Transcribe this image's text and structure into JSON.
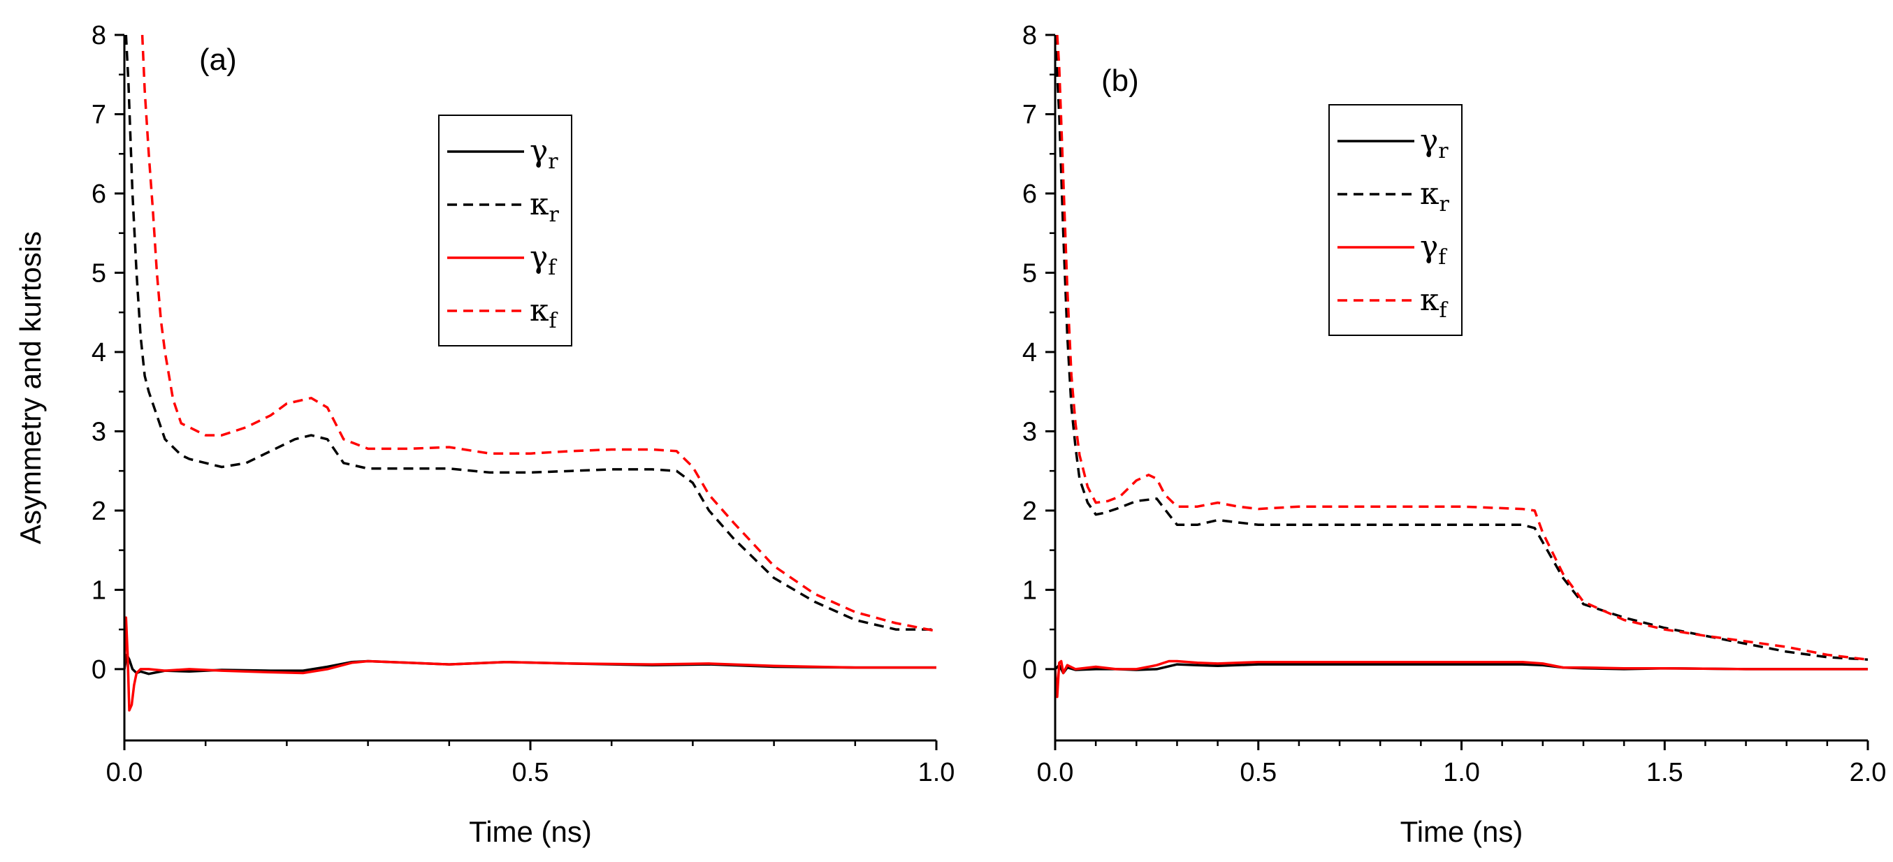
{
  "chart_data": [
    {
      "type": "line",
      "panel_label": "(a)",
      "xlabel": "Time (ns)",
      "ylabel": "Asymmetry and kurtosis",
      "xlim": [
        0,
        1.0
      ],
      "ylim": [
        -0.9,
        8
      ],
      "xticks": [
        0.0,
        0.5,
        1.0
      ],
      "xtick_labels": [
        "0.0",
        "0.5",
        "1.0"
      ],
      "yticks": [
        0,
        1,
        2,
        3,
        4,
        5,
        6,
        7,
        8
      ],
      "ytick_labels": [
        "0",
        "1",
        "2",
        "3",
        "4",
        "5",
        "6",
        "7",
        "8"
      ],
      "legend_position": "top-center",
      "series": [
        {
          "name": "γ",
          "sub": "r",
          "color": "#000000",
          "style": "solid",
          "x": [
            0.0,
            0.003,
            0.006,
            0.01,
            0.015,
            0.02,
            0.03,
            0.05,
            0.08,
            0.12,
            0.18,
            0.22,
            0.25,
            0.28,
            0.3,
            0.35,
            0.4,
            0.47,
            0.55,
            0.65,
            0.72,
            0.8,
            0.9,
            1.0
          ],
          "y": [
            0.0,
            0.18,
            0.12,
            0.0,
            -0.05,
            -0.03,
            -0.06,
            -0.02,
            -0.03,
            -0.01,
            -0.02,
            -0.02,
            0.03,
            0.09,
            0.1,
            0.08,
            0.06,
            0.09,
            0.07,
            0.05,
            0.06,
            0.03,
            0.02,
            0.02
          ]
        },
        {
          "name": "κ",
          "sub": "r",
          "color": "#000000",
          "style": "dashed",
          "x": [
            0.002,
            0.005,
            0.01,
            0.015,
            0.02,
            0.025,
            0.03,
            0.04,
            0.05,
            0.06,
            0.07,
            0.08,
            0.1,
            0.12,
            0.15,
            0.18,
            0.21,
            0.23,
            0.25,
            0.27,
            0.3,
            0.35,
            0.4,
            0.45,
            0.5,
            0.55,
            0.6,
            0.65,
            0.68,
            0.7,
            0.72,
            0.75,
            0.8,
            0.85,
            0.9,
            0.95,
            1.0
          ],
          "y": [
            8.0,
            7.4,
            6.0,
            5.0,
            4.2,
            3.7,
            3.5,
            3.2,
            2.9,
            2.8,
            2.7,
            2.65,
            2.6,
            2.55,
            2.6,
            2.75,
            2.9,
            2.95,
            2.9,
            2.6,
            2.53,
            2.53,
            2.53,
            2.48,
            2.48,
            2.5,
            2.52,
            2.52,
            2.5,
            2.35,
            2.0,
            1.65,
            1.15,
            0.85,
            0.62,
            0.5,
            0.5
          ]
        },
        {
          "name": "γ",
          "sub": "f",
          "color": "#ff0000",
          "style": "solid",
          "x": [
            0.0,
            0.002,
            0.004,
            0.006,
            0.009,
            0.012,
            0.015,
            0.02,
            0.03,
            0.05,
            0.08,
            0.12,
            0.18,
            0.22,
            0.25,
            0.28,
            0.3,
            0.35,
            0.4,
            0.47,
            0.55,
            0.65,
            0.72,
            0.8,
            0.9,
            1.0
          ],
          "y": [
            0.0,
            0.65,
            0.2,
            -0.52,
            -0.45,
            -0.2,
            -0.05,
            0.0,
            0.0,
            -0.02,
            0.0,
            -0.02,
            -0.04,
            -0.05,
            0.0,
            0.08,
            0.1,
            0.08,
            0.06,
            0.09,
            0.07,
            0.06,
            0.07,
            0.04,
            0.02,
            0.02
          ]
        },
        {
          "name": "κ",
          "sub": "f",
          "color": "#ff0000",
          "style": "dashed",
          "x": [
            0.022,
            0.025,
            0.03,
            0.035,
            0.04,
            0.045,
            0.05,
            0.06,
            0.07,
            0.08,
            0.1,
            0.12,
            0.15,
            0.18,
            0.2,
            0.23,
            0.25,
            0.27,
            0.3,
            0.35,
            0.4,
            0.45,
            0.5,
            0.55,
            0.6,
            0.65,
            0.68,
            0.7,
            0.72,
            0.75,
            0.8,
            0.85,
            0.9,
            0.95,
            1.0
          ],
          "y": [
            8.0,
            7.3,
            6.5,
            5.8,
            5.0,
            4.4,
            4.0,
            3.4,
            3.1,
            3.05,
            2.95,
            2.95,
            3.05,
            3.2,
            3.35,
            3.42,
            3.3,
            2.9,
            2.78,
            2.78,
            2.8,
            2.72,
            2.72,
            2.75,
            2.77,
            2.77,
            2.75,
            2.55,
            2.2,
            1.85,
            1.3,
            0.95,
            0.72,
            0.58,
            0.48
          ]
        }
      ]
    },
    {
      "type": "line",
      "panel_label": "(b)",
      "xlabel": "Time (ns)",
      "ylabel": "",
      "xlim": [
        0,
        2.0
      ],
      "ylim": [
        -0.9,
        8
      ],
      "xticks": [
        0.0,
        0.5,
        1.0,
        1.5,
        2.0
      ],
      "xtick_labels": [
        "0.0",
        "0.5",
        "1.0",
        "1.5",
        "2.0"
      ],
      "yticks": [
        0,
        1,
        2,
        3,
        4,
        5,
        6,
        7,
        8
      ],
      "ytick_labels": [
        "0",
        "1",
        "2",
        "3",
        "4",
        "5",
        "6",
        "7",
        "8"
      ],
      "legend_position": "top-center",
      "series": [
        {
          "name": "γ",
          "sub": "r",
          "color": "#000000",
          "style": "solid",
          "x": [
            0.0,
            0.01,
            0.02,
            0.03,
            0.05,
            0.1,
            0.15,
            0.2,
            0.25,
            0.3,
            0.35,
            0.4,
            0.5,
            0.7,
            1.0,
            1.15,
            1.2,
            1.25,
            1.3,
            1.4,
            1.5,
            1.7,
            2.0
          ],
          "y": [
            0.0,
            0.05,
            -0.05,
            0.02,
            -0.01,
            0.0,
            0.0,
            -0.01,
            0.0,
            0.06,
            0.05,
            0.04,
            0.06,
            0.06,
            0.06,
            0.06,
            0.05,
            0.02,
            0.01,
            0.0,
            0.01,
            0.0,
            0.0
          ]
        },
        {
          "name": "κ",
          "sub": "r",
          "color": "#000000",
          "style": "dashed",
          "x": [
            0.0,
            0.01,
            0.02,
            0.03,
            0.04,
            0.05,
            0.06,
            0.08,
            0.1,
            0.12,
            0.15,
            0.2,
            0.25,
            0.28,
            0.3,
            0.35,
            0.4,
            0.45,
            0.5,
            0.6,
            0.8,
            1.0,
            1.15,
            1.18,
            1.2,
            1.25,
            1.3,
            1.4,
            1.5,
            1.6,
            1.7,
            1.8,
            1.9,
            2.0
          ],
          "y": [
            8.0,
            7.0,
            5.5,
            4.2,
            3.3,
            2.8,
            2.4,
            2.1,
            1.95,
            1.97,
            2.02,
            2.12,
            2.15,
            1.95,
            1.82,
            1.82,
            1.88,
            1.85,
            1.82,
            1.82,
            1.82,
            1.82,
            1.82,
            1.78,
            1.6,
            1.15,
            0.82,
            0.65,
            0.52,
            0.42,
            0.32,
            0.22,
            0.15,
            0.12
          ]
        },
        {
          "name": "γ",
          "sub": "f",
          "color": "#ff0000",
          "style": "solid",
          "x": [
            0.0,
            0.005,
            0.01,
            0.015,
            0.02,
            0.03,
            0.05,
            0.1,
            0.15,
            0.2,
            0.25,
            0.28,
            0.3,
            0.35,
            0.4,
            0.5,
            0.7,
            1.0,
            1.15,
            1.2,
            1.25,
            1.3,
            1.4,
            1.5,
            1.7,
            2.0
          ],
          "y": [
            0.0,
            -0.35,
            0.08,
            0.1,
            -0.05,
            0.05,
            0.0,
            0.03,
            0.0,
            0.0,
            0.05,
            0.1,
            0.1,
            0.08,
            0.07,
            0.09,
            0.09,
            0.09,
            0.09,
            0.07,
            0.02,
            0.02,
            0.01,
            0.01,
            0.0,
            0.0
          ]
        },
        {
          "name": "κ",
          "sub": "f",
          "color": "#ff0000",
          "style": "dashed",
          "x": [
            0.005,
            0.01,
            0.02,
            0.03,
            0.04,
            0.05,
            0.06,
            0.08,
            0.1,
            0.13,
            0.16,
            0.2,
            0.23,
            0.25,
            0.27,
            0.3,
            0.35,
            0.4,
            0.45,
            0.5,
            0.6,
            0.8,
            1.0,
            1.15,
            1.18,
            1.2,
            1.25,
            1.3,
            1.4,
            1.5,
            1.6,
            1.7,
            1.8,
            1.9,
            2.0
          ],
          "y": [
            8.0,
            7.6,
            6.2,
            4.8,
            3.7,
            3.1,
            2.7,
            2.3,
            2.1,
            2.12,
            2.18,
            2.38,
            2.45,
            2.4,
            2.2,
            2.05,
            2.05,
            2.1,
            2.05,
            2.02,
            2.05,
            2.05,
            2.05,
            2.02,
            2.0,
            1.72,
            1.2,
            0.85,
            0.62,
            0.5,
            0.42,
            0.35,
            0.28,
            0.18,
            0.12
          ]
        }
      ]
    }
  ]
}
